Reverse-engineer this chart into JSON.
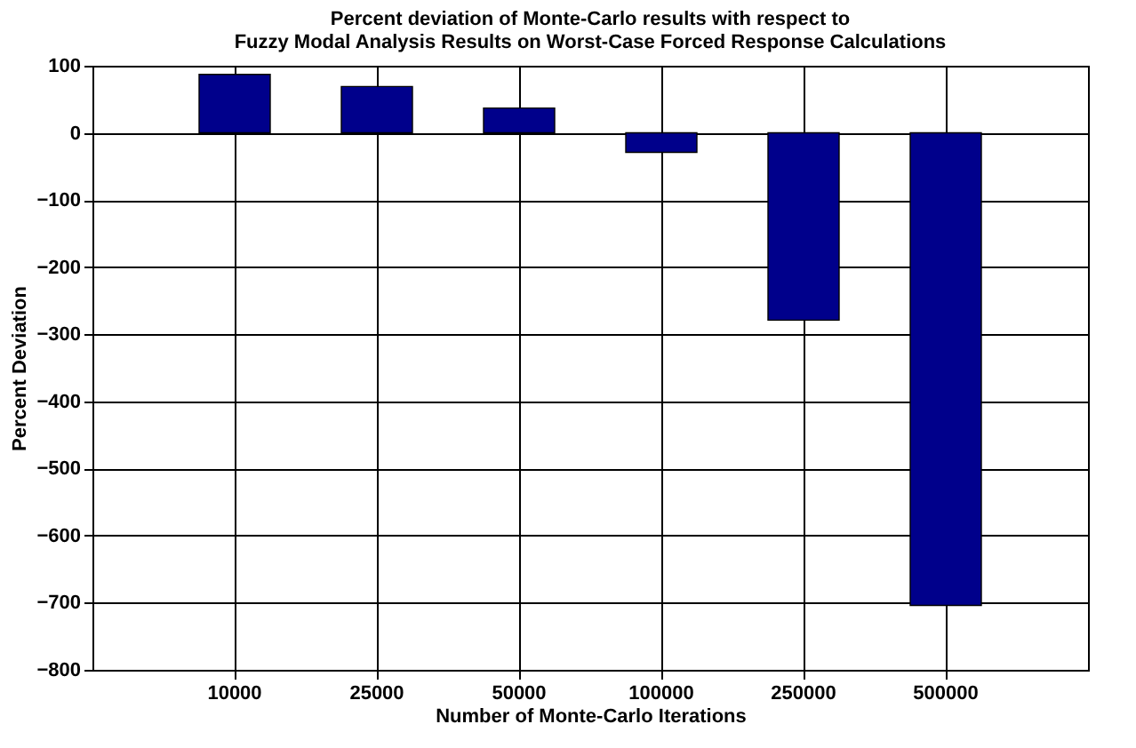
{
  "chart_data": {
    "type": "bar",
    "title": [
      "Percent deviation of Monte-Carlo results with respect to",
      "Fuzzy Modal Analysis Results on Worst-Case Forced Response Calculations"
    ],
    "xlabel": "Number of Monte-Carlo Iterations",
    "ylabel": "Percent Deviation",
    "categories": [
      "10000",
      "25000",
      "50000",
      "100000",
      "250000",
      "500000"
    ],
    "values": [
      87,
      69,
      37,
      -29,
      -279,
      -704
    ],
    "color": "#00008b",
    "ylim": [
      -800,
      100
    ],
    "yticks": [
      -800,
      -700,
      -600,
      -500,
      -400,
      -300,
      -200,
      -100,
      0,
      100
    ],
    "grid": true
  }
}
